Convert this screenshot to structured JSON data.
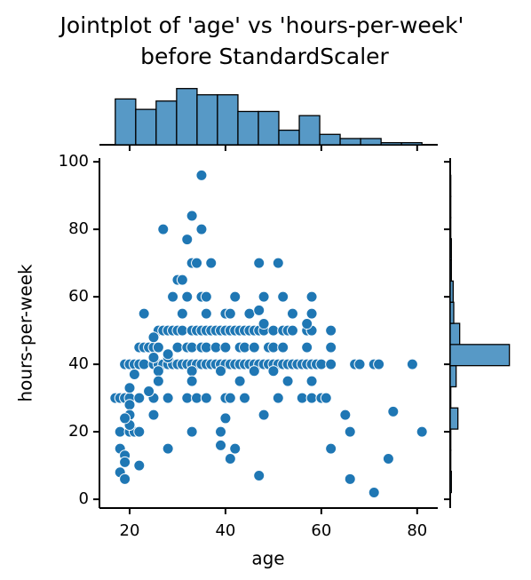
{
  "chart_data": [
    {
      "type": "scatter",
      "title": [
        "Jointplot of 'age' vs 'hours-per-week'",
        "before StandardScaler"
      ],
      "x_label": "age",
      "y_label": "hours-per-week",
      "xlim": [
        13.7,
        84.3
      ],
      "ylim": [
        -2.6,
        101.1
      ],
      "xticks": [
        20,
        40,
        60,
        80
      ],
      "yticks": [
        0,
        20,
        40,
        60,
        80,
        100
      ],
      "color": "#1f77b4",
      "x": [
        19,
        20,
        21,
        22,
        23,
        25,
        26,
        27,
        28,
        29,
        30,
        31,
        32,
        33,
        34,
        35,
        36,
        37,
        38,
        39,
        40,
        41,
        42,
        43,
        44,
        45,
        46,
        47,
        48,
        49,
        50,
        51,
        52,
        53,
        54,
        55,
        56,
        57,
        58,
        59,
        60,
        62,
        67,
        68,
        71,
        72,
        79,
        26,
        27,
        28,
        29,
        30,
        31,
        33,
        34,
        35,
        36,
        37,
        38,
        39,
        40,
        41,
        42,
        43,
        44,
        45,
        46,
        47,
        48,
        50,
        52,
        53,
        54,
        57,
        58,
        62,
        22,
        23,
        24,
        25,
        26,
        30,
        32,
        33,
        35,
        36,
        38,
        40,
        43,
        44,
        46,
        49,
        50,
        52,
        57,
        62,
        17,
        18,
        19,
        20,
        22,
        25,
        28,
        32,
        34,
        36,
        40,
        41,
        44,
        51,
        56,
        58,
        60,
        61,
        18,
        20,
        21,
        22,
        33,
        39,
        66,
        81,
        35,
        33,
        27,
        35,
        32,
        33,
        34,
        37,
        47,
        51,
        30,
        31,
        29,
        32,
        35,
        36,
        42,
        48,
        52,
        58,
        23,
        31,
        36,
        40,
        41,
        45,
        47,
        54,
        58,
        48,
        57,
        25,
        28,
        26,
        25,
        28,
        33,
        39,
        46,
        50,
        26,
        33,
        43,
        53,
        58,
        21,
        20,
        24,
        20,
        20,
        25,
        40,
        48,
        65,
        20,
        19,
        75,
        39,
        18,
        19,
        19,
        18,
        19,
        22,
        28,
        41,
        42,
        62,
        74,
        66,
        71,
        47
      ],
      "values": [
        40,
        40,
        40,
        40,
        40,
        40,
        40,
        40,
        40,
        40,
        40,
        40,
        40,
        40,
        40,
        40,
        40,
        40,
        40,
        40,
        40,
        40,
        40,
        40,
        40,
        40,
        40,
        40,
        40,
        40,
        40,
        40,
        40,
        40,
        40,
        40,
        40,
        40,
        40,
        40,
        40,
        40,
        40,
        40,
        40,
        40,
        40,
        50,
        50,
        50,
        50,
        50,
        50,
        50,
        50,
        50,
        50,
        50,
        50,
        50,
        50,
        50,
        50,
        50,
        50,
        50,
        50,
        50,
        50,
        50,
        50,
        50,
        50,
        50,
        50,
        50,
        45,
        45,
        45,
        45,
        45,
        45,
        45,
        45,
        45,
        45,
        45,
        45,
        45,
        45,
        45,
        45,
        45,
        45,
        45,
        45,
        30,
        30,
        30,
        30,
        30,
        30,
        30,
        30,
        30,
        30,
        30,
        30,
        30,
        30,
        30,
        30,
        30,
        30,
        20,
        20,
        20,
        20,
        20,
        20,
        20,
        20,
        96,
        84,
        80,
        80,
        77,
        70,
        70,
        70,
        70,
        70,
        65,
        65,
        60,
        60,
        60,
        60,
        60,
        60,
        60,
        60,
        55,
        55,
        55,
        55,
        55,
        55,
        56,
        55,
        55,
        52,
        52,
        48,
        42,
        38,
        42,
        43,
        38,
        38,
        38,
        38,
        35,
        35,
        35,
        35,
        35,
        37,
        33,
        32,
        28,
        25,
        25,
        24,
        25,
        25,
        22,
        24,
        26,
        16,
        15,
        13,
        11,
        8,
        6,
        10,
        15,
        12,
        15,
        15,
        12,
        6,
        2,
        7
      ]
    },
    {
      "type": "histogram",
      "orientation": "vertical",
      "color": "#5799c6",
      "bins": [
        17,
        21.27,
        25.53,
        29.8,
        34.07,
        38.33,
        42.6,
        46.87,
        51.13,
        55.4,
        59.67,
        63.93,
        68.2,
        72.47,
        76.73,
        81
      ],
      "values": [
        22,
        17,
        21,
        27,
        24,
        24,
        16,
        16,
        7,
        14,
        5,
        3,
        3,
        1,
        1
      ],
      "ylim": [
        0,
        29
      ]
    },
    {
      "type": "histogram",
      "orientation": "horizontal",
      "color": "#5799c6",
      "bins": [
        2,
        8.27,
        14.53,
        20.8,
        27.07,
        33.33,
        39.6,
        45.87,
        52.13,
        58.4,
        64.67,
        70.93,
        77.2,
        83.47,
        89.73,
        96
      ],
      "values": [
        2,
        1,
        1,
        13,
        1,
        10,
        100,
        16,
        6,
        5,
        2,
        2,
        1,
        1,
        1
      ],
      "xlim": [
        0,
        132
      ]
    }
  ]
}
